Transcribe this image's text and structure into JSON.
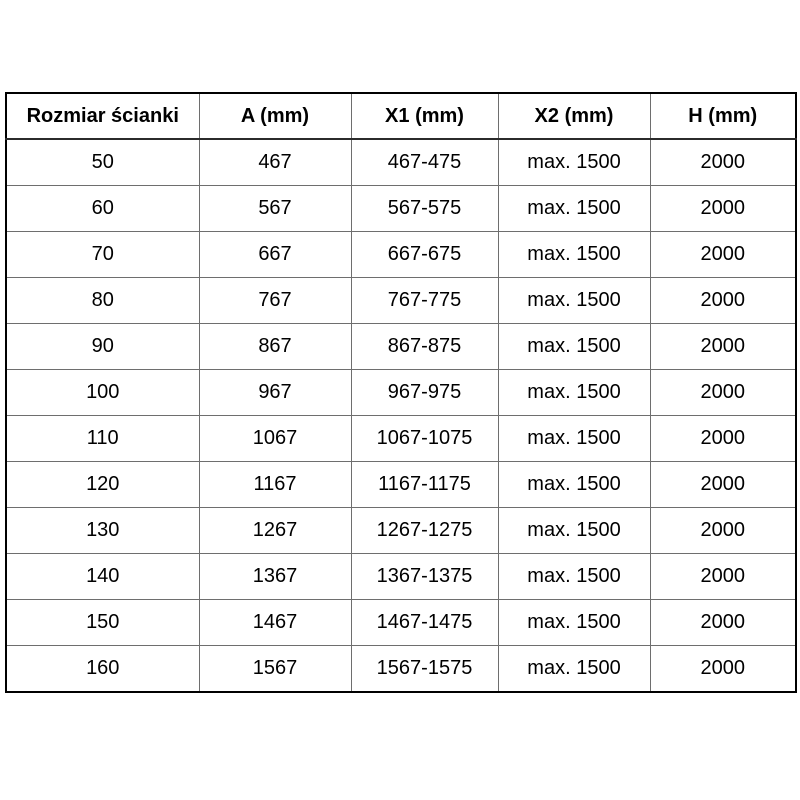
{
  "colors": {
    "background": "#ffffff",
    "text": "#000000",
    "outer_border": "#000000",
    "inner_border": "#6e6e6e"
  },
  "chart_data": {
    "type": "table",
    "title": "",
    "columns": [
      "Rozmiar ścianki",
      "A (mm)",
      "X1 (mm)",
      "X2 (mm)",
      "H (mm)"
    ],
    "rows": [
      [
        "50",
        "467",
        "467-475",
        "max. 1500",
        "2000"
      ],
      [
        "60",
        "567",
        "567-575",
        "max. 1500",
        "2000"
      ],
      [
        "70",
        "667",
        "667-675",
        "max. 1500",
        "2000"
      ],
      [
        "80",
        "767",
        "767-775",
        "max. 1500",
        "2000"
      ],
      [
        "90",
        "867",
        "867-875",
        "max. 1500",
        "2000"
      ],
      [
        "100",
        "967",
        "967-975",
        "max. 1500",
        "2000"
      ],
      [
        "110",
        "1067",
        "1067-1075",
        "max. 1500",
        "2000"
      ],
      [
        "120",
        "1167",
        "1167-1175",
        "max. 1500",
        "2000"
      ],
      [
        "130",
        "1267",
        "1267-1275",
        "max. 1500",
        "2000"
      ],
      [
        "140",
        "1367",
        "1367-1375",
        "max. 1500",
        "2000"
      ],
      [
        "150",
        "1467",
        "1467-1475",
        "max. 1500",
        "2000"
      ],
      [
        "160",
        "1567",
        "1567-1575",
        "max. 1500",
        "2000"
      ]
    ]
  }
}
